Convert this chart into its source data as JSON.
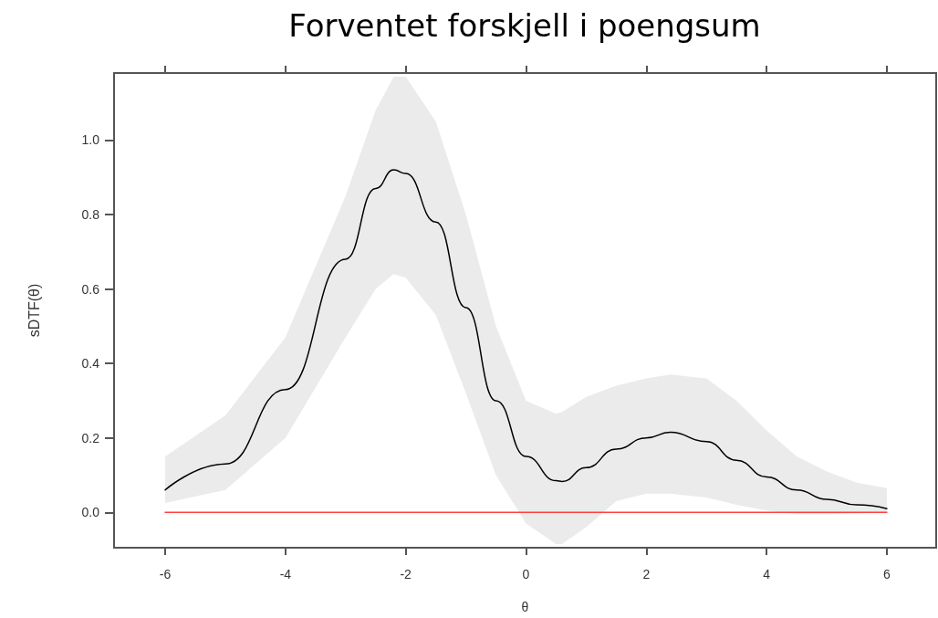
{
  "chart_data": {
    "type": "line",
    "title": "Forventet forskjell i poengsum",
    "xlabel": "θ",
    "ylabel": "sDTF(θ)",
    "xlim": [
      -6.85,
      6.82
    ],
    "xticks": [
      -6,
      -4,
      -2,
      0,
      2,
      4,
      6
    ],
    "ylim": [
      -0.095,
      1.18
    ],
    "yticks": [
      {
        "value": 0,
        "label": "0.0"
      },
      {
        "value": 0.2,
        "label": "0.2"
      },
      {
        "value": 0.4,
        "label": "0.4"
      },
      {
        "value": 0.6,
        "label": "0.6"
      },
      {
        "value": 0.8,
        "label": "0.8"
      },
      {
        "value": 1,
        "label": "1.0"
      }
    ],
    "marker": "none",
    "line_style": "solid",
    "series": [
      {
        "color": "#000000",
        "x": [
          -6,
          -5,
          -4,
          -3,
          -2.5,
          -2.2,
          -2,
          -1.5,
          -1,
          -0.5,
          0,
          0.5,
          0.6,
          1,
          1.5,
          2,
          2.4,
          3,
          3.5,
          4,
          4.5,
          5,
          5.5,
          6
        ],
        "values": [
          0.06,
          0.13,
          0.33,
          0.68,
          0.87,
          0.92,
          0.91,
          0.78,
          0.55,
          0.3,
          0.15,
          0.085,
          0.083,
          0.12,
          0.17,
          0.2,
          0.215,
          0.19,
          0.14,
          0.095,
          0.06,
          0.035,
          0.02,
          0.01
        ],
        "lower": [
          0.025,
          0.06,
          0.2,
          0.47,
          0.6,
          0.64,
          0.63,
          0.53,
          0.32,
          0.1,
          -0.03,
          -0.085,
          -0.085,
          -0.04,
          0.03,
          0.05,
          0.05,
          0.04,
          0.02,
          0.005,
          -0.005,
          -0.005,
          -0.003,
          0.0
        ],
        "upper": [
          0.15,
          0.26,
          0.47,
          0.85,
          1.08,
          1.17,
          1.17,
          1.05,
          0.8,
          0.5,
          0.3,
          0.265,
          0.27,
          0.31,
          0.34,
          0.36,
          0.37,
          0.36,
          0.3,
          0.22,
          0.15,
          0.11,
          0.08,
          0.065
        ]
      },
      {
        "color": "#ff4040",
        "x": [
          -6,
          6
        ],
        "values": [
          0,
          0
        ]
      }
    ]
  }
}
